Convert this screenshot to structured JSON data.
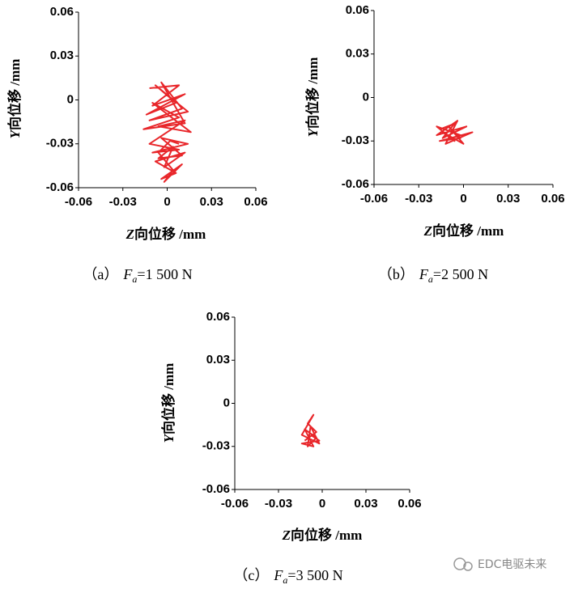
{
  "chart_data": [
    {
      "type": "line",
      "color": "#e8262a",
      "x": [
        -0.012,
        0.008,
        -0.01,
        0.012,
        -0.014,
        0.006,
        -0.008,
        0.014,
        -0.012,
        0.01,
        -0.004,
        0.012,
        -0.016,
        0.008,
        -0.01,
        0.016,
        -0.006,
        0.012,
        -0.012,
        0.008,
        -0.01,
        0.014,
        -0.004,
        0.01,
        -0.006,
        0.004,
        -0.002,
        0.012,
        -0.008,
        0.006,
        -0.004,
        0.01,
        -0.002,
        0.004,
        -0.006,
        0.002,
        0.008
      ],
      "values": [
        0.008,
        0.01,
        -0.004,
        0.004,
        -0.01,
        -0.002,
        0.01,
        -0.008,
        -0.014,
        -0.006,
        0.012,
        -0.016,
        -0.02,
        -0.012,
        -0.002,
        -0.022,
        -0.018,
        -0.014,
        -0.03,
        -0.034,
        -0.036,
        -0.03,
        -0.026,
        -0.038,
        -0.04,
        -0.032,
        -0.046,
        -0.036,
        -0.042,
        -0.05,
        -0.054,
        -0.044,
        -0.056,
        -0.048,
        -0.036,
        -0.028,
        -0.03
      ],
      "xlim": [
        -0.06,
        0.06
      ],
      "ylim": [
        -0.06,
        0.06
      ],
      "xticks": [
        -0.06,
        -0.03,
        0,
        0.03,
        0.06
      ],
      "yticks": [
        -0.06,
        -0.03,
        0,
        0.03,
        0.06
      ],
      "x_label": {
        "symbol": "Z",
        "text": "向位移 /mm"
      },
      "y_label": {
        "symbol": "Y",
        "text": "向位移 /mm"
      },
      "caption": {
        "label": "（a）",
        "symbol": "F",
        "subscript": "a",
        "text": "=1 500 N"
      }
    },
    {
      "type": "line",
      "color": "#e8262a",
      "x": [
        -0.016,
        -0.006,
        -0.014,
        0.002,
        -0.018,
        -0.004,
        -0.012,
        0.006,
        -0.016,
        -0.002,
        -0.01,
        0.0,
        -0.014,
        -0.006,
        -0.018,
        -0.002
      ],
      "values": [
        -0.022,
        -0.018,
        -0.028,
        -0.02,
        -0.026,
        -0.016,
        -0.032,
        -0.024,
        -0.03,
        -0.028,
        -0.02,
        -0.032,
        -0.024,
        -0.03,
        -0.02,
        -0.026
      ],
      "xlim": [
        -0.06,
        0.06
      ],
      "ylim": [
        -0.06,
        0.06
      ],
      "xticks": [
        -0.06,
        -0.03,
        0,
        0.03,
        0.06
      ],
      "yticks": [
        -0.06,
        -0.03,
        0,
        0.03,
        0.06
      ],
      "x_label": {
        "symbol": "Z",
        "text": "向位移 /mm"
      },
      "y_label": {
        "symbol": "Y",
        "text": "向位移 /mm"
      },
      "caption": {
        "label": "（b）",
        "symbol": "F",
        "subscript": "a",
        "text": "=2 500 N"
      }
    },
    {
      "type": "line",
      "color": "#e8262a",
      "x": [
        -0.012,
        -0.004,
        -0.01,
        -0.006,
        -0.014,
        -0.002,
        -0.008,
        -0.01,
        -0.004,
        -0.012,
        -0.006,
        -0.014,
        -0.002,
        -0.008
      ],
      "values": [
        -0.026,
        -0.02,
        -0.014,
        -0.008,
        -0.022,
        -0.028,
        -0.016,
        -0.03,
        -0.024,
        -0.018,
        -0.03,
        -0.028,
        -0.026,
        -0.022
      ],
      "xlim": [
        -0.06,
        0.06
      ],
      "ylim": [
        -0.06,
        0.06
      ],
      "xticks": [
        -0.06,
        -0.03,
        0,
        0.03,
        0.06
      ],
      "yticks": [
        -0.06,
        -0.03,
        0,
        0.03,
        0.06
      ],
      "x_label": {
        "symbol": "Z",
        "text": "向位移 /mm"
      },
      "y_label": {
        "symbol": "Y",
        "text": "向位移 /mm"
      },
      "caption": {
        "label": "（c）",
        "symbol": "F",
        "subscript": "a",
        "text": "=3 500 N"
      }
    }
  ],
  "watermark": "EDC电驱未来"
}
